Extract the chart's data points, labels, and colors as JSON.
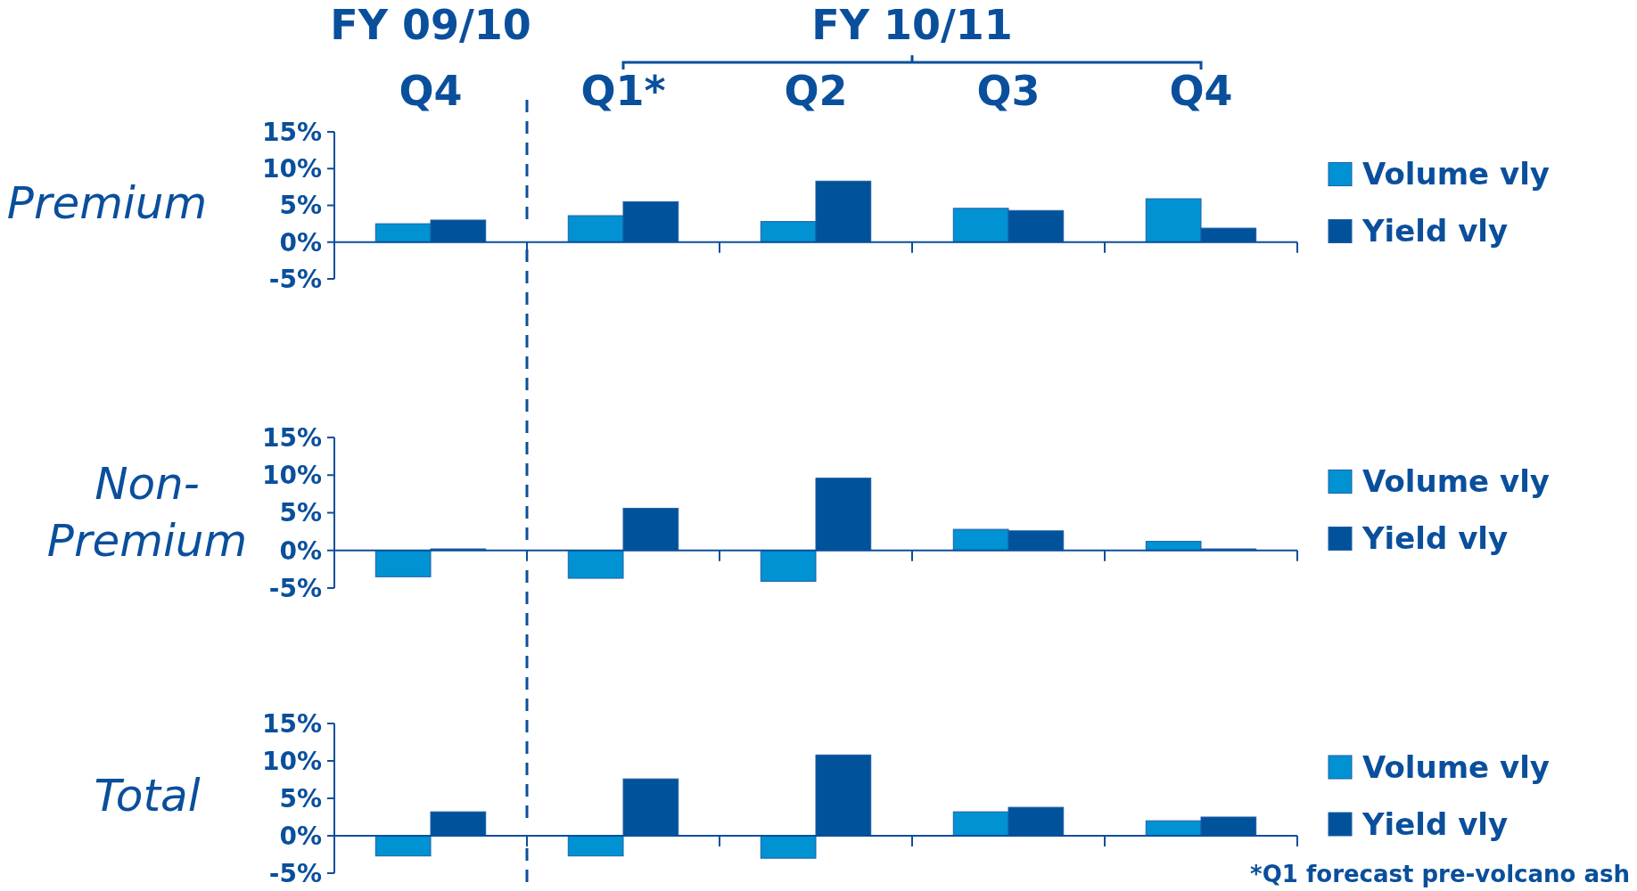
{
  "chart_data": [
    {
      "type": "bar",
      "title": "Premium",
      "categories": [
        "Q4",
        "Q1*",
        "Q2",
        "Q3",
        "Q4"
      ],
      "ref_lines": [
        {
          "axis": "y",
          "value": 0
        }
      ],
      "series": [
        {
          "name": "Volume vly",
          "color": "#0092d2",
          "values": [
            2.5,
            3.6,
            2.8,
            4.6,
            5.9
          ]
        },
        {
          "name": "Yield vly",
          "color": "#00529b",
          "values": [
            3.0,
            5.5,
            8.3,
            4.3,
            1.9
          ]
        }
      ],
      "ylim": [
        -5,
        15
      ],
      "yticks": [
        {
          "value": -5,
          "label": "-5%"
        },
        {
          "value": 0,
          "label": "0%"
        },
        {
          "value": 5,
          "label": "5%"
        },
        {
          "value": 10,
          "label": "10%"
        },
        {
          "value": 15,
          "label": "15%"
        }
      ],
      "annotations": [
        "FY 09/10",
        "FY 10/11"
      ],
      "legend": "right"
    },
    {
      "type": "bar",
      "title": "Non-Premium",
      "categories": [
        null,
        null,
        null,
        null,
        null
      ],
      "ref_lines": [
        {
          "axis": "y",
          "value": 0
        }
      ],
      "series": [
        {
          "name": "Volume vly",
          "color": "#0092d2",
          "values": [
            -3.5,
            -3.7,
            -4.1,
            2.8,
            1.2
          ]
        },
        {
          "name": "Yield vly",
          "color": "#00529b",
          "values": [
            0.2,
            5.6,
            9.6,
            2.6,
            0.2
          ]
        }
      ],
      "ylim": [
        -5,
        15
      ],
      "yticks": [
        {
          "value": -5,
          "label": "-5%"
        },
        {
          "value": 0,
          "label": "0%"
        },
        {
          "value": 5,
          "label": "5%"
        },
        {
          "value": 10,
          "label": "10%"
        },
        {
          "value": 15,
          "label": "15%"
        }
      ],
      "tick_labels": "y",
      "legend": "right"
    },
    {
      "type": "bar",
      "title": "Total",
      "categories": [
        null,
        null,
        null,
        null,
        null
      ],
      "ref_lines": [
        {
          "axis": "y",
          "value": 0
        }
      ],
      "series": [
        {
          "name": "Volume vly",
          "color": "#0092d2",
          "values": [
            -2.7,
            -2.7,
            -3.0,
            3.2,
            2.0
          ]
        },
        {
          "name": "Yield vly",
          "color": "#00529b",
          "values": [
            3.2,
            7.6,
            10.8,
            3.8,
            2.5
          ]
        }
      ],
      "ylim": [
        -5,
        15
      ],
      "yticks": [
        {
          "value": -5,
          "label": "-5%"
        },
        {
          "value": 0,
          "label": "0%"
        },
        {
          "value": 5,
          "label": "5%"
        },
        {
          "value": 10,
          "label": "10%"
        },
        {
          "value": 15,
          "label": "15%"
        }
      ],
      "tick_labels": "y",
      "annotations": [
        "*Q1 forecast pre-volcano ash"
      ],
      "legend": "right"
    }
  ]
}
